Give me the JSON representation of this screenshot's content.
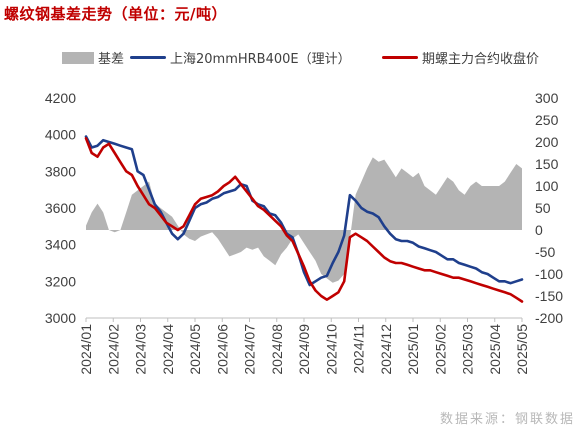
{
  "title": "螺纹钢基差走势（单位：元/吨）",
  "source": "数据来源：钢联数据",
  "chart_data": {
    "type": "line",
    "title": "螺纹钢基差走势（单位：元/吨）",
    "series": [
      {
        "name": "基差",
        "axis": "right",
        "style": "area",
        "color": "#b4b4b4",
        "values": [
          10,
          40,
          60,
          40,
          0,
          -5,
          0,
          40,
          80,
          90,
          100,
          110,
          60,
          50,
          40,
          30,
          10,
          -10,
          -20,
          -25,
          -15,
          -10,
          -5,
          -20,
          -40,
          -60,
          -55,
          -50,
          -40,
          -45,
          -40,
          -60,
          -70,
          -80,
          -55,
          -40,
          -20,
          -10,
          -30,
          -50,
          -70,
          -100,
          -110,
          -120,
          -115,
          -100,
          -20,
          80,
          110,
          140,
          165,
          155,
          160,
          140,
          120,
          140,
          130,
          120,
          130,
          100,
          90,
          80,
          100,
          120,
          110,
          90,
          80,
          100,
          110,
          100,
          100,
          100,
          100,
          110,
          130,
          150,
          140
        ]
      },
      {
        "name": "上海20mmHRB400E（理计）",
        "axis": "left",
        "style": "line",
        "color": "#1f3f8c",
        "values": [
          3990,
          3930,
          3940,
          3970,
          3960,
          3950,
          3940,
          3930,
          3920,
          3800,
          3780,
          3700,
          3620,
          3580,
          3520,
          3460,
          3430,
          3460,
          3530,
          3600,
          3620,
          3630,
          3650,
          3660,
          3680,
          3690,
          3700,
          3730,
          3720,
          3640,
          3620,
          3610,
          3570,
          3560,
          3520,
          3460,
          3440,
          3350,
          3250,
          3180,
          3200,
          3220,
          3230,
          3300,
          3360,
          3450,
          3670,
          3640,
          3600,
          3580,
          3570,
          3550,
          3500,
          3460,
          3430,
          3420,
          3420,
          3410,
          3390,
          3380,
          3370,
          3360,
          3340,
          3320,
          3320,
          3300,
          3290,
          3280,
          3270,
          3250,
          3240,
          3220,
          3200,
          3200,
          3190,
          3200,
          3210
        ]
      },
      {
        "name": "期螺主力合约收盘价",
        "axis": "left",
        "style": "line",
        "color": "#c00000",
        "values": [
          3980,
          3900,
          3880,
          3930,
          3950,
          3900,
          3850,
          3800,
          3780,
          3720,
          3670,
          3620,
          3600,
          3560,
          3520,
          3500,
          3480,
          3500,
          3560,
          3620,
          3650,
          3660,
          3670,
          3690,
          3720,
          3740,
          3770,
          3730,
          3690,
          3650,
          3610,
          3590,
          3560,
          3530,
          3500,
          3450,
          3420,
          3350,
          3280,
          3200,
          3150,
          3120,
          3100,
          3120,
          3140,
          3200,
          3440,
          3460,
          3440,
          3420,
          3390,
          3360,
          3330,
          3310,
          3300,
          3300,
          3290,
          3280,
          3270,
          3260,
          3260,
          3250,
          3240,
          3230,
          3220,
          3220,
          3210,
          3200,
          3190,
          3180,
          3170,
          3160,
          3150,
          3140,
          3130,
          3110,
          3090
        ]
      }
    ],
    "x_ticks": [
      "2024/01",
      "2024/02",
      "2024/03",
      "2024/04",
      "2024/05",
      "2024/06",
      "2024/07",
      "2024/08",
      "2024/09",
      "2024/10",
      "2024/11",
      "2024/12",
      "2025/01",
      "2025/02",
      "2025/03",
      "2025/04",
      "2025/05"
    ],
    "y_left": {
      "min": 3000,
      "max": 4200,
      "ticks": [
        3000,
        3200,
        3400,
        3600,
        3800,
        4000,
        4200
      ]
    },
    "y_right": {
      "min": -200,
      "max": 300,
      "ticks": [
        -200,
        -150,
        -100,
        -50,
        0,
        50,
        100,
        150,
        200,
        250,
        300
      ]
    },
    "grid": false,
    "legend_position": "top"
  }
}
